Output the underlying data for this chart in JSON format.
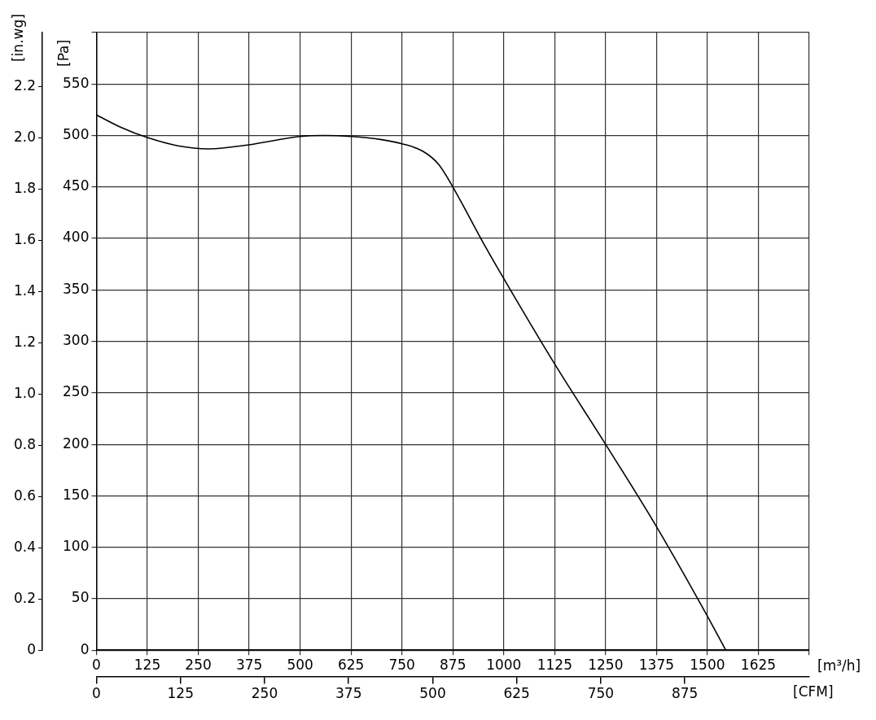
{
  "chart_data": {
    "type": "line",
    "xlabel": "[m³/h]",
    "x2label": "[CFM]",
    "ylabel": "[Pa]",
    "y2label": "[in.wg]",
    "x": [
      0,
      60,
      125,
      200,
      277,
      375,
      500,
      560,
      625,
      700,
      750,
      800,
      840,
      875,
      945,
      1000,
      1125,
      1250,
      1375,
      1500,
      1545
    ],
    "series": [
      {
        "color": "#000000",
        "values": [
          520,
          508,
          498,
          490,
          487,
          491,
          499,
          500,
          499,
          496,
          492,
          485,
          472,
          450,
          399,
          361,
          278,
          200,
          120,
          33,
          0
        ]
      }
    ],
    "xlim": [
      0,
      1750
    ],
    "xticks": [
      0,
      125,
      250,
      375,
      500,
      625,
      750,
      875,
      1000,
      1125,
      1250,
      1375,
      1500,
      1625,
      {
        "value": 1750,
        "label": null
      }
    ],
    "x2lim": [
      0,
      1060
    ],
    "x2ticks": [
      0,
      125,
      250,
      375,
      500,
      625,
      750,
      875
    ],
    "ylim": [
      0,
      600
    ],
    "yticks": [
      0,
      50,
      100,
      150,
      200,
      250,
      300,
      350,
      400,
      450,
      500,
      550,
      {
        "value": 600,
        "label": null
      }
    ],
    "y2lim": [
      0,
      2.41
    ],
    "y2ticks": [
      0,
      {
        "value": 0.2,
        "label": "0.2"
      },
      {
        "value": 0.4,
        "label": "0.4"
      },
      {
        "value": 0.6,
        "label": "0.6"
      },
      {
        "value": 0.8,
        "label": "0.8"
      },
      {
        "value": 1,
        "label": "1.0"
      },
      {
        "value": 1.2,
        "label": "1.2"
      },
      {
        "value": 1.4,
        "label": "1.4"
      },
      {
        "value": 1.6,
        "label": "1.6"
      },
      {
        "value": 1.8,
        "label": "1.8"
      },
      {
        "value": 2,
        "label": "2.0"
      },
      {
        "value": 2.2,
        "label": "2.2"
      }
    ],
    "grid": true,
    "legend": false,
    "marker": "none",
    "line_style": "solid"
  }
}
